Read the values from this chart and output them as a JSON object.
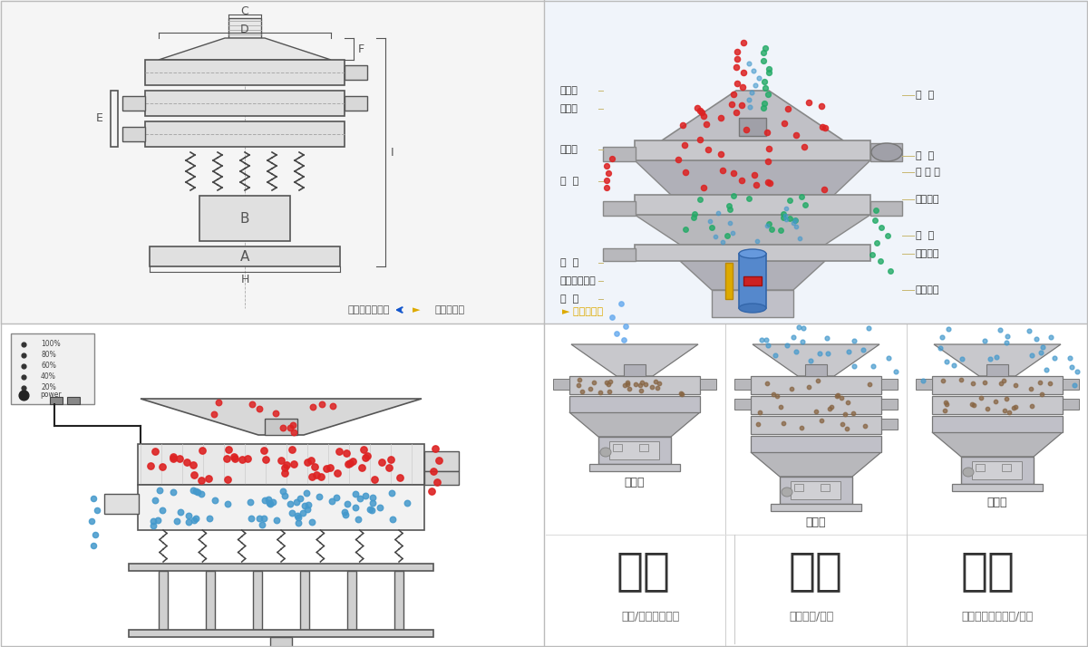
{
  "bg_color": "#ffffff",
  "panel_bg_tl": "#f5f5f5",
  "panel_bg_tr": "#f0f4fa",
  "panel_bg_bl": "#ffffff",
  "panel_bg_br": "#ffffff",
  "border_color": "#cccccc",
  "dim_color": "#555555",
  "label_line_color": "#c8b870",
  "left_labels": [
    "进料口",
    "防尘盖",
    "出料口",
    "束  环",
    "弹  簧",
    "运输固定螺栓",
    "机  座"
  ],
  "right_labels": [
    "筛  网",
    "网  架",
    "加 重 块",
    "上部重锤",
    "筛  盘",
    "振动电机",
    "下部重锤"
  ],
  "single_label": "单层式",
  "triple_label": "三层式",
  "double_label": "双层式",
  "text_fj": "分级",
  "text_gl": "过滤",
  "text_cj": "除杂",
  "sub_fj": "颗粒/粉末准确分级",
  "sub_gl": "去除异物/结块",
  "sub_cj": "去除液体中的颗粒/异物",
  "nav_left_text": "外形尺寸示意图",
  "nav_right_text": "结构示意图",
  "red_color": "#dd2222",
  "blue_color": "#4499cc",
  "teal_color": "#22aa66",
  "gold_color": "#ddaa00",
  "dim_line": "#555555",
  "machine_gray": "#c8c8cc",
  "machine_light": "#e0e0e4",
  "machine_dark": "#a0a0a8"
}
